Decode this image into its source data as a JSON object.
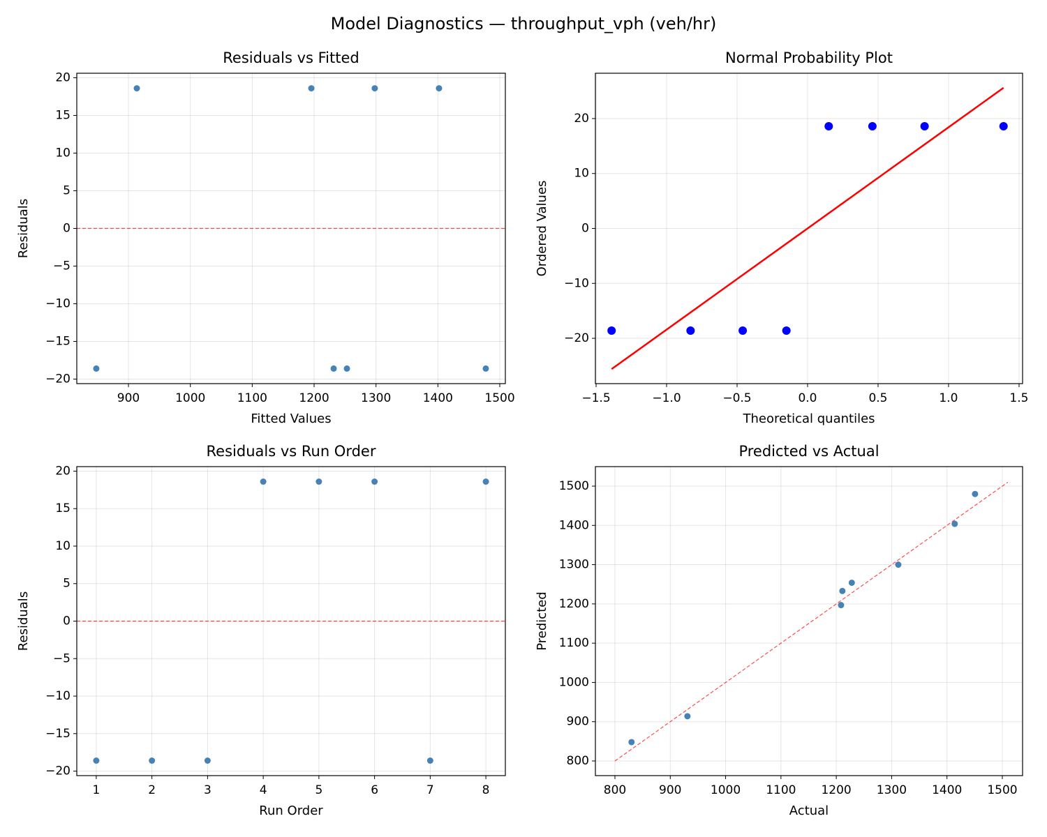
{
  "title": "Model Diagnostics — throughput_vph (veh/hr)",
  "chart_data": [
    {
      "type": "scatter",
      "title": "Residuals vs Fitted",
      "xlabel": "Fitted Values",
      "ylabel": "Residuals",
      "x": [
        848,
        913.5,
        1195.5,
        1231.6,
        1253,
        1298,
        1401.8,
        1477.4
      ],
      "values": [
        -18.6,
        18.6,
        18.6,
        -18.6,
        -18.6,
        18.6,
        18.6,
        -18.6
      ],
      "color": "#4682b4",
      "grid": true,
      "hline": {
        "y": 0,
        "color": "#ff0000",
        "style": "dashed"
      },
      "xlim": [
        816.5,
        1509
      ],
      "ylim": [
        -20.6,
        20.6
      ],
      "xticks": [
        900,
        1000,
        1100,
        1200,
        1300,
        1400,
        1500
      ],
      "yticks": [
        {
          "value": -20,
          "label": "−20"
        },
        {
          "value": -15,
          "label": "−15"
        },
        {
          "value": -10,
          "label": "−10"
        },
        {
          "value": -5,
          "label": "−5"
        },
        0,
        5,
        10,
        15,
        20
      ]
    },
    {
      "type": "scatter",
      "title": "Normal Probability Plot",
      "xlabel": "Theoretical quantiles",
      "ylabel": "Ordered Values",
      "x": [
        -1.39,
        -0.83,
        -0.46,
        -0.15,
        0.15,
        0.46,
        0.83,
        1.39
      ],
      "values": [
        -18.6,
        -18.6,
        -18.6,
        -18.6,
        18.6,
        18.6,
        18.6,
        18.6
      ],
      "color": "#0000ff",
      "grid": true,
      "fit_line": {
        "x": [
          -1.39,
          1.39
        ],
        "y": [
          -25.6,
          25.6
        ],
        "color": "#ff0000",
        "style": "solid"
      },
      "xlim": [
        -1.505,
        1.525
      ],
      "ylim": [
        -28.25,
        28.25
      ],
      "xticks": [
        {
          "value": -1.5,
          "label": "−1.5"
        },
        {
          "value": -1,
          "label": "−1.0"
        },
        {
          "value": -0.5,
          "label": "−0.5"
        },
        {
          "value": 0,
          "label": "0.0"
        },
        0.5,
        {
          "value": 1,
          "label": "1.0"
        },
        1.5
      ],
      "yticks": [
        {
          "value": -20,
          "label": "−20"
        },
        {
          "value": -10,
          "label": "−10"
        },
        0,
        10,
        20
      ]
    },
    {
      "type": "scatter",
      "title": "Residuals vs Run Order",
      "xlabel": "Run Order",
      "ylabel": "Residuals",
      "x": [
        1,
        2,
        3,
        4,
        5,
        6,
        7,
        8
      ],
      "values": [
        -18.6,
        -18.6,
        -18.6,
        18.6,
        18.6,
        18.6,
        -18.6,
        18.6
      ],
      "color": "#4682b4",
      "grid": true,
      "hline": {
        "y": 0,
        "color": "#ff0000",
        "style": "dashed"
      },
      "xlim": [
        0.65,
        8.35
      ],
      "ylim": [
        -20.6,
        20.6
      ],
      "xticks": [
        1,
        2,
        3,
        4,
        5,
        6,
        7,
        8
      ],
      "yticks": [
        {
          "value": -20,
          "label": "−20"
        },
        {
          "value": -15,
          "label": "−15"
        },
        {
          "value": -10,
          "label": "−10"
        },
        {
          "value": -5,
          "label": "−5"
        },
        0,
        5,
        10,
        15,
        20
      ]
    },
    {
      "type": "scatter",
      "title": "Predicted vs Actual",
      "xlabel": "Actual",
      "ylabel": "Predicted",
      "x": [
        830,
        931,
        1208.6,
        1211,
        1228,
        1312,
        1414,
        1450.7
      ],
      "values": [
        848,
        914,
        1197,
        1233,
        1254,
        1300,
        1404,
        1480
      ],
      "color": "#4682b4",
      "grid": true,
      "fit_line": {
        "x": [
          800,
          1510
        ],
        "y": [
          800,
          1510
        ],
        "color": "#ff0000",
        "style": "dashed"
      },
      "xlim": [
        764.7,
        1536.6
      ],
      "ylim": [
        762.7,
        1549.7
      ],
      "xticks": [
        800,
        900,
        1000,
        1100,
        1200,
        1300,
        1400,
        1500
      ],
      "yticks": [
        800,
        900,
        1000,
        1100,
        1200,
        1300,
        1400,
        1500
      ]
    }
  ]
}
